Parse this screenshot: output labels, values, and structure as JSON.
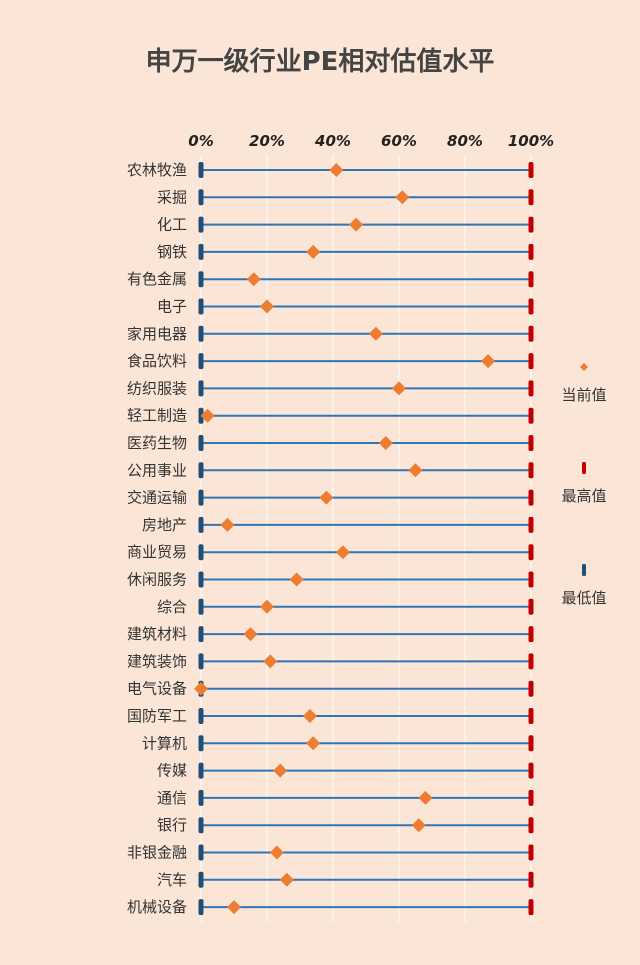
{
  "chart_data": {
    "type": "scatter",
    "title": "申万一级行业PE相对估值水平",
    "x_ticks": [
      "0%",
      "20%",
      "40%",
      "60%",
      "80%",
      "100%"
    ],
    "xlim": [
      0,
      100
    ],
    "grid": true,
    "legend_position": "right",
    "categories": [
      "农林牧渔",
      "采掘",
      "化工",
      "钢铁",
      "有色金属",
      "电子",
      "家用电器",
      "食品饮料",
      "纺织服装",
      "轻工制造",
      "医药生物",
      "公用事业",
      "交通运输",
      "房地产",
      "商业贸易",
      "休闲服务",
      "综合",
      "建筑材料",
      "建筑装饰",
      "电气设备",
      "国防军工",
      "计算机",
      "传媒",
      "通信",
      "银行",
      "非银金融",
      "汽车",
      "机械设备"
    ],
    "series": [
      {
        "name": "当前值",
        "color": "#ed7d31",
        "marker": "diamond",
        "values": [
          41,
          61,
          47,
          34,
          16,
          20,
          53,
          87,
          60,
          2,
          56,
          65,
          38,
          8,
          43,
          29,
          20,
          15,
          21,
          0,
          33,
          34,
          24,
          68,
          66,
          23,
          26,
          10
        ]
      },
      {
        "name": "最高值",
        "color": "#c00000",
        "marker": "bar",
        "values": [
          100,
          100,
          100,
          100,
          100,
          100,
          100,
          100,
          100,
          100,
          100,
          100,
          100,
          100,
          100,
          100,
          100,
          100,
          100,
          100,
          100,
          100,
          100,
          100,
          100,
          100,
          100,
          100
        ]
      },
      {
        "name": "最低值",
        "color": "#1f4e79",
        "marker": "bar",
        "values": [
          0,
          0,
          0,
          0,
          0,
          0,
          0,
          0,
          0,
          0,
          0,
          0,
          0,
          0,
          0,
          0,
          0,
          0,
          0,
          0,
          0,
          0,
          0,
          0,
          0,
          0,
          0,
          0
        ]
      }
    ],
    "range_line_color": "#2e75b6",
    "grid_color": "#ffffff"
  }
}
